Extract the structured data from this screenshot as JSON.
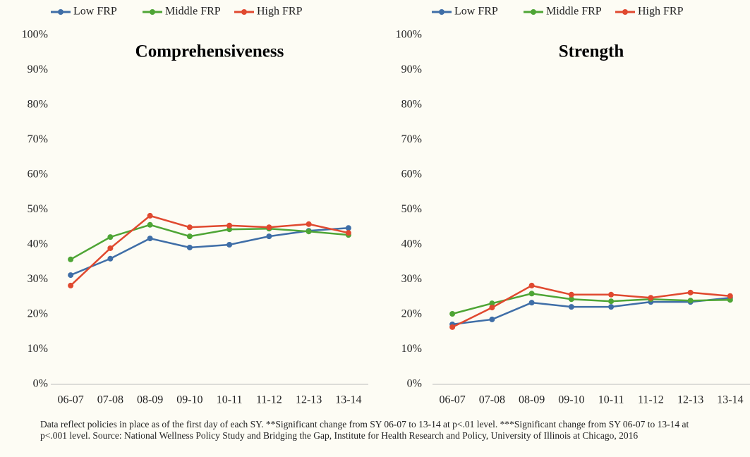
{
  "chart_data": [
    {
      "type": "line",
      "title": "Comprehensiveness",
      "categories": [
        "06-07",
        "07-08",
        "08-09",
        "09-10",
        "10-11",
        "11-12",
        "12-13",
        "13-14"
      ],
      "series": [
        {
          "name": "Low FRP",
          "color": "#3f6ea7",
          "values": [
            31.3,
            36,
            41.8,
            39.2,
            40,
            42.4,
            44,
            44.8
          ]
        },
        {
          "name": "Middle FRP",
          "color": "#4ea535",
          "values": [
            35.8,
            42.2,
            45.7,
            42.4,
            44.4,
            44.6,
            43.8,
            42.8
          ]
        },
        {
          "name": "High FRP",
          "color": "#e0492f",
          "values": [
            28.3,
            39,
            48.3,
            45,
            45.5,
            45,
            45.9,
            43.4
          ]
        }
      ],
      "ylim": [
        0,
        100
      ],
      "yticks": [
        {
          "value": 0,
          "label": "0%"
        },
        {
          "value": 10,
          "label": "10%"
        },
        {
          "value": 20,
          "label": "20%"
        },
        {
          "value": 30,
          "label": "30%"
        },
        {
          "value": 40,
          "label": "40%"
        },
        {
          "value": 50,
          "label": "50%"
        },
        {
          "value": 60,
          "label": "60%"
        },
        {
          "value": 70,
          "label": "70%"
        },
        {
          "value": 80,
          "label": "80%"
        },
        {
          "value": 90,
          "label": "90%"
        },
        {
          "value": 100,
          "label": "100%"
        }
      ]
    },
    {
      "type": "line",
      "title": "Strength",
      "categories": [
        "06-07",
        "07-08",
        "08-09",
        "09-10",
        "10-11",
        "11-12",
        "12-13",
        "13-14"
      ],
      "series": [
        {
          "name": "Low FRP",
          "color": "#3f6ea7",
          "values": [
            17.2,
            18.6,
            23.4,
            22.2,
            22.2,
            23.6,
            23.6,
            24.8
          ]
        },
        {
          "name": "Middle FRP",
          "color": "#4ea535",
          "values": [
            20.2,
            23.2,
            26,
            24.4,
            23.8,
            24.4,
            24,
            24.2
          ]
        },
        {
          "name": "High FRP",
          "color": "#e0492f",
          "values": [
            16.4,
            22,
            28.3,
            25.7,
            25.7,
            24.8,
            26.3,
            25.3
          ]
        }
      ],
      "ylim": [
        0,
        100
      ],
      "yticks": [
        {
          "value": 0,
          "label": "0%"
        },
        {
          "value": 10,
          "label": "10%"
        },
        {
          "value": 20,
          "label": "20%"
        },
        {
          "value": 30,
          "label": "30%"
        },
        {
          "value": 40,
          "label": "40%"
        },
        {
          "value": 50,
          "label": "50%"
        },
        {
          "value": 60,
          "label": "60%"
        },
        {
          "value": 70,
          "label": "70%"
        },
        {
          "value": 80,
          "label": "80%"
        },
        {
          "value": 90,
          "label": "90%"
        },
        {
          "value": 100,
          "label": "100%"
        }
      ]
    }
  ],
  "footnote": "Data reflect policies in place as of the first day of each SY. **Significant change from SY 06-07 to 13-14 at p<.01 level. ***Significant change from SY 06-07 to 13-14 at p<.001 level. Source: National Wellness Policy Study and Bridging the Gap, Institute for Health Research and Policy, University of Illinois at Chicago, 2016"
}
